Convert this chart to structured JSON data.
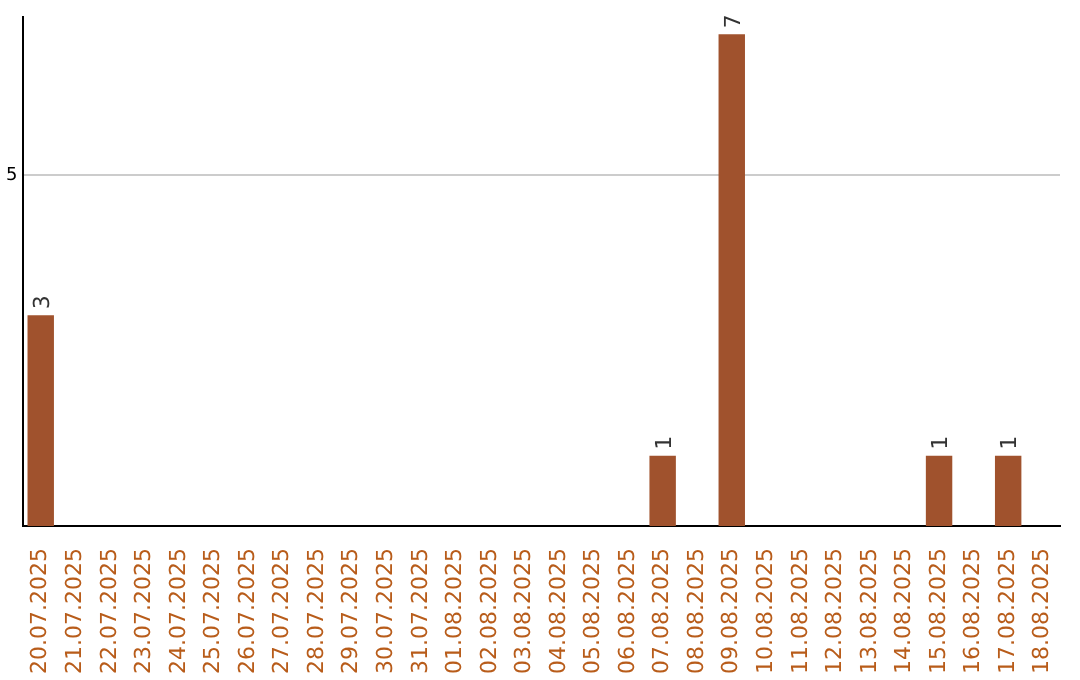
{
  "chart_data": {
    "type": "bar",
    "categories": [
      "20.07.2025",
      "21.07.2025",
      "22.07.2025",
      "23.07.2025",
      "24.07.2025",
      "25.07.2025",
      "26.07.2025",
      "27.07.2025",
      "28.07.2025",
      "29.07.2025",
      "30.07.2025",
      "31.07.2025",
      "01.08.2025",
      "02.08.2025",
      "03.08.2025",
      "04.08.2025",
      "05.08.2025",
      "06.08.2025",
      "07.08.2025",
      "08.08.2025",
      "09.08.2025",
      "10.08.2025",
      "11.08.2025",
      "12.08.2025",
      "13.08.2025",
      "14.08.2025",
      "15.08.2025",
      "16.08.2025",
      "17.08.2025",
      "18.08.2025"
    ],
    "values": [
      3,
      0,
      0,
      0,
      0,
      0,
      0,
      0,
      0,
      0,
      0,
      0,
      0,
      0,
      0,
      0,
      0,
      0,
      1,
      0,
      7,
      0,
      0,
      0,
      0,
      0,
      1,
      0,
      1,
      0
    ],
    "value_labels": [
      "3",
      null,
      null,
      null,
      null,
      null,
      null,
      null,
      null,
      null,
      null,
      null,
      null,
      null,
      null,
      null,
      null,
      null,
      "1",
      null,
      "7",
      null,
      null,
      null,
      null,
      null,
      "1",
      null,
      "1",
      null
    ],
    "color": "#a0522d",
    "ylim": [
      0,
      7.25
    ],
    "yticks": [
      5
    ],
    "grid": "y"
  }
}
